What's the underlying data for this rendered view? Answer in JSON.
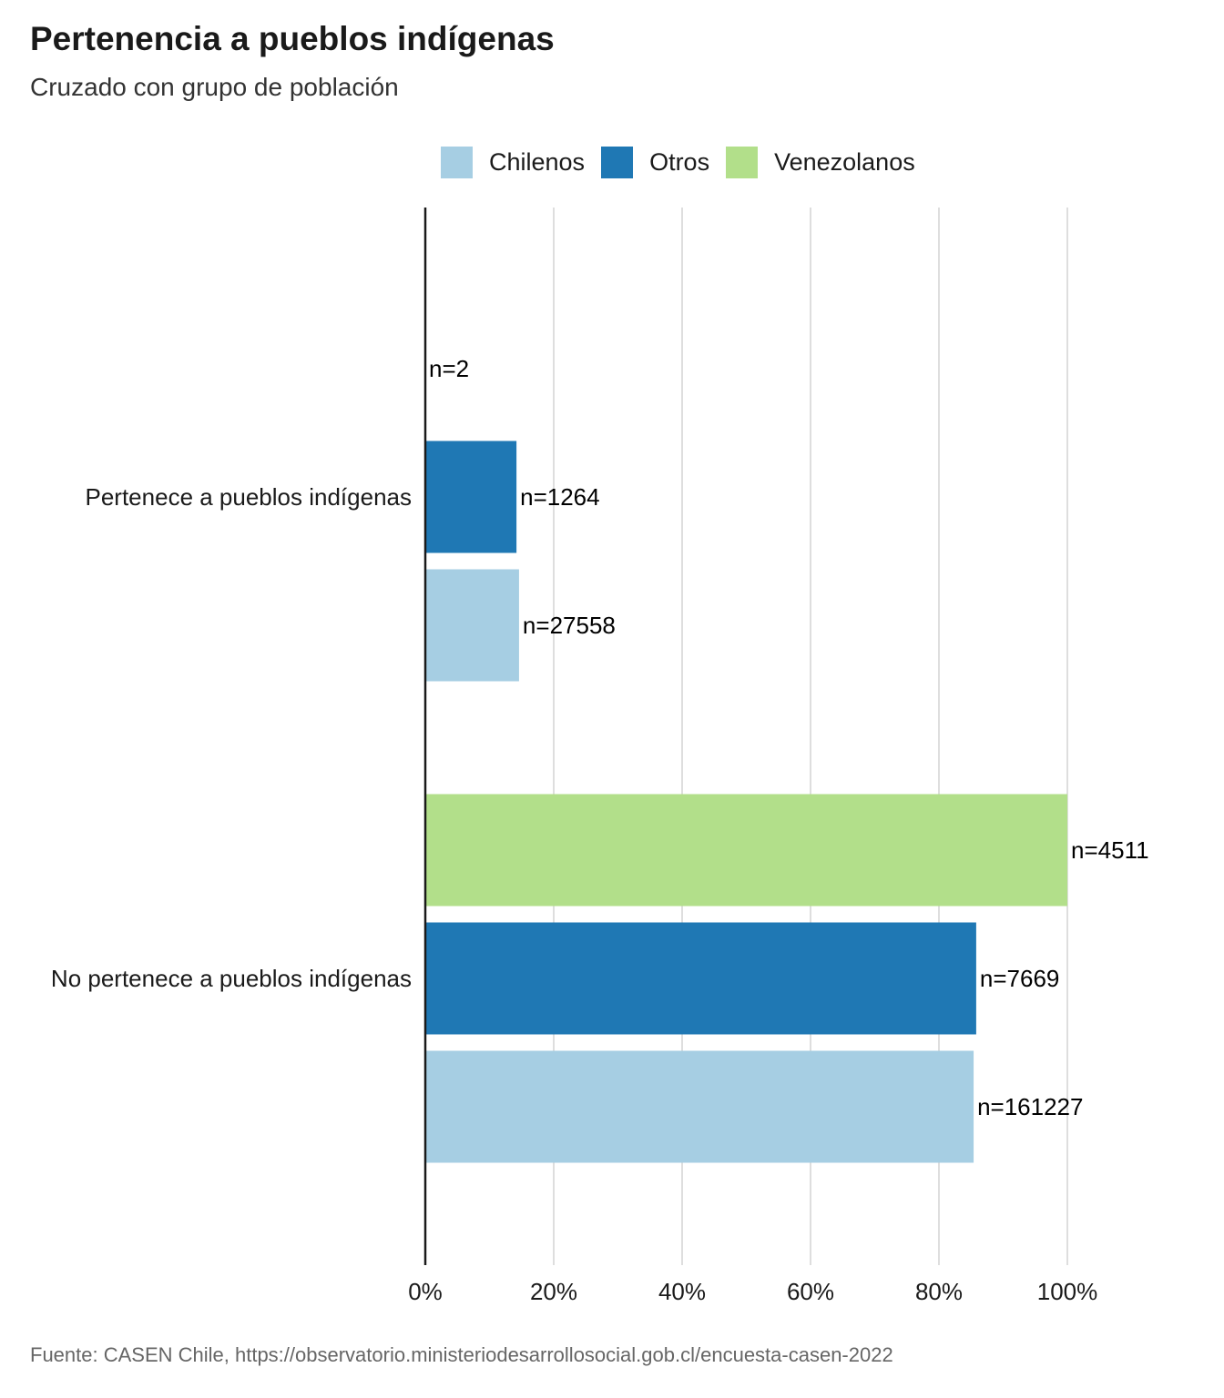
{
  "title": "Pertenencia a pueblos indígenas",
  "subtitle": "Cruzado con grupo de población",
  "caption": "Fuente: CASEN Chile, https://observatorio.ministeriodesarrollosocial.gob.cl/encuesta-casen-2022",
  "colors": {
    "Chilenos": "#a6cee3",
    "Otros": "#1f78b4",
    "Venezolanos": "#b2df8a"
  },
  "chart_data": {
    "type": "bar",
    "orientation": "horizontal",
    "categories": [
      "Pertenece a pueblos indígenas",
      "No pertenece a pueblos indígenas"
    ],
    "series": [
      {
        "name": "Venezolanos",
        "values": [
          0.0,
          100
        ],
        "labels": [
          "n=2",
          "n=4511"
        ]
      },
      {
        "name": "Otros",
        "values": [
          14.2,
          85.8
        ],
        "labels": [
          "n=1264",
          "n=7669"
        ]
      },
      {
        "name": "Chilenos",
        "values": [
          14.6,
          85.4
        ],
        "labels": [
          "n=27558",
          "n=161227"
        ]
      }
    ],
    "xlim": [
      0,
      100
    ],
    "xticks": [
      "0%",
      "20%",
      "40%",
      "60%",
      "80%",
      "100%"
    ],
    "grid": true,
    "legend": {
      "position": "top",
      "entries": [
        "Chilenos",
        "Otros",
        "Venezolanos"
      ]
    }
  }
}
